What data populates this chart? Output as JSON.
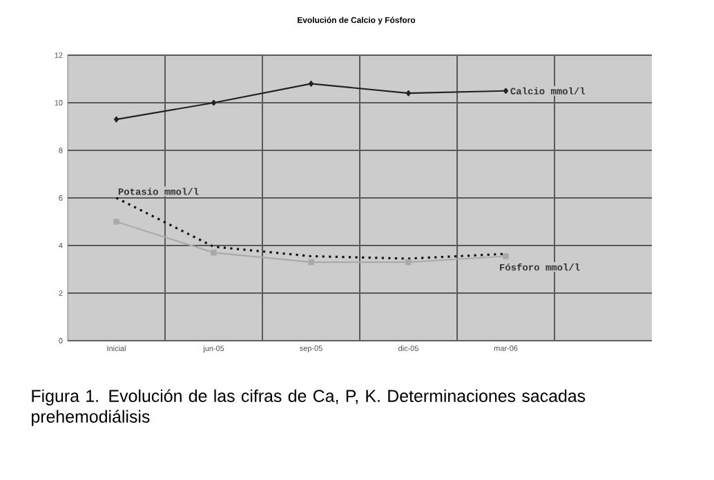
{
  "chart_data": {
    "type": "line",
    "title": "Evolución de Calcio y Fósforo",
    "categories": [
      "Inicial",
      "jun-05",
      "sep-05",
      "dic-05",
      "mar-06",
      null
    ],
    "series": [
      {
        "name": "Calcio mmol/l",
        "color": "#222222",
        "values": [
          9.3,
          10.0,
          10.8,
          10.4,
          10.5,
          null
        ],
        "marker": "diamond",
        "line_style": "solid"
      },
      {
        "name": "Potasio mmol/l",
        "color": "#111111",
        "values": [
          6.0,
          3.95,
          3.55,
          3.45,
          3.65,
          null
        ],
        "marker": "none",
        "line_style": "dotted"
      },
      {
        "name": "Fósforo mmol/l",
        "color": "#aaaaaa",
        "values": [
          5.0,
          3.7,
          3.3,
          3.3,
          3.55,
          null
        ],
        "marker": "square",
        "line_style": "solid"
      }
    ],
    "ylim": [
      0,
      12
    ],
    "yticks": [
      0,
      2,
      4,
      6,
      8,
      10,
      12
    ],
    "grid": true,
    "legend": false,
    "annotations": [
      "Figura 1. Evolución de las cifras de Ca, P, K. Determinaciones sacadas prehemodiálisis"
    ]
  }
}
